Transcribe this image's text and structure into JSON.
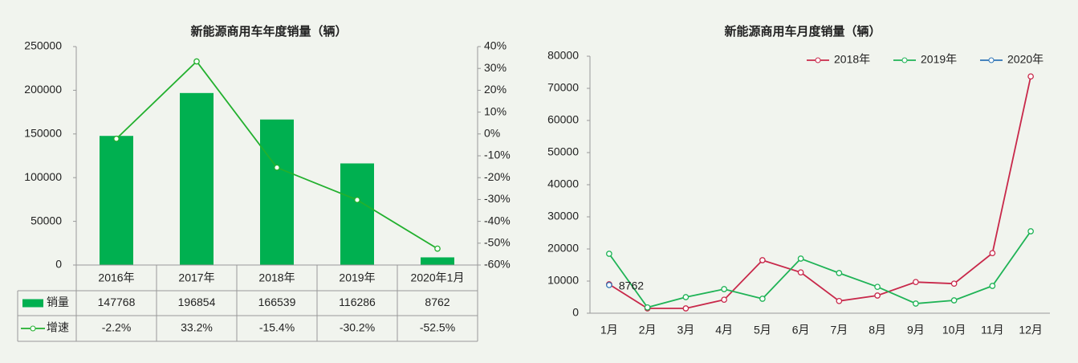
{
  "chart_data": [
    {
      "type": "combo",
      "title": "新能源商用车年度销量（辆）",
      "categories": [
        "2016年",
        "2017年",
        "2018年",
        "2019年",
        "2020年1月"
      ],
      "series": [
        {
          "name": "销量",
          "type": "bar",
          "color": "#00b050",
          "values": [
            147768,
            196854,
            166539,
            116286,
            8762
          ]
        },
        {
          "name": "增速",
          "type": "line",
          "axis": "y2",
          "color": "#22b02e",
          "values": [
            -2.2,
            33.2,
            -15.4,
            -30.2,
            -52.5
          ],
          "value_labels": [
            "-2.2%",
            "33.2%",
            "-15.4%",
            "-30.2%",
            "-52.5%"
          ]
        }
      ],
      "ylim": [
        0,
        250000
      ],
      "yticks": [
        0,
        50000,
        100000,
        150000,
        200000,
        250000
      ],
      "y2lim": [
        -60,
        40
      ],
      "y2ticks": [
        {
          "value": -60,
          "label": "-60%"
        },
        {
          "value": -50,
          "label": "-50%"
        },
        {
          "value": -40,
          "label": "-40%"
        },
        {
          "value": -30,
          "label": "-30%"
        },
        {
          "value": -20,
          "label": "-20%"
        },
        {
          "value": -10,
          "label": "-10%"
        },
        {
          "value": 0,
          "label": "0%"
        },
        {
          "value": 10,
          "label": "10%"
        },
        {
          "value": 20,
          "label": "20%"
        },
        {
          "value": 30,
          "label": "30%"
        },
        {
          "value": 40,
          "label": "40%"
        }
      ]
    },
    {
      "type": "line",
      "title": "新能源商用车月度销量（辆）",
      "categories": [
        "1月",
        "2月",
        "3月",
        "4月",
        "5月",
        "6月",
        "7月",
        "8月",
        "9月",
        "10月",
        "11月",
        "12月"
      ],
      "series": [
        {
          "name": "2018年",
          "color": "#c8284a",
          "values": [
            9000,
            1500,
            1500,
            4200,
            16500,
            12700,
            3800,
            5500,
            9700,
            9200,
            18700,
            73700
          ]
        },
        {
          "name": "2019年",
          "color": "#1fb356",
          "values": [
            18500,
            1800,
            5000,
            7500,
            4500,
            17000,
            12500,
            8200,
            3000,
            4000,
            8500,
            25500
          ]
        },
        {
          "name": "2020年",
          "color": "#2e75b6",
          "values": [
            8762,
            null,
            null,
            null,
            null,
            null,
            null,
            null,
            null,
            null,
            null,
            null
          ]
        }
      ],
      "ylim": [
        0,
        80000
      ],
      "yticks": [
        0,
        10000,
        20000,
        30000,
        40000,
        50000,
        60000,
        70000,
        80000
      ],
      "legend": "top-right"
    }
  ]
}
